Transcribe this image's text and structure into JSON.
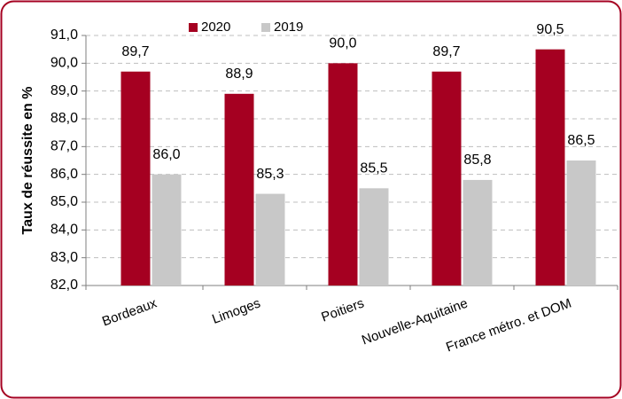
{
  "chart_data": {
    "type": "bar",
    "ylabel": "Taux de réussite en %",
    "categories": [
      "Bordeaux",
      "Limoges",
      "Poitiers",
      "Nouvelle-Aquitaine",
      "France métro. et DOM"
    ],
    "series": [
      {
        "name": "2020",
        "color": "#a50021",
        "values": [
          89.7,
          88.9,
          90.0,
          89.7,
          90.5
        ],
        "value_labels": [
          "89,7",
          "88,9",
          "90,0",
          "89,7",
          "90,5"
        ]
      },
      {
        "name": "2019",
        "color": "#c8c8c8",
        "values": [
          86.0,
          85.3,
          85.5,
          85.8,
          86.5
        ],
        "value_labels": [
          "86,0",
          "85,3",
          "85,5",
          "85,8",
          "86,5"
        ]
      }
    ],
    "ylim": [
      82,
      91
    ],
    "yticks": [
      {
        "value": 82,
        "label": "82,0"
      },
      {
        "value": 83,
        "label": "83,0"
      },
      {
        "value": 84,
        "label": "84,0"
      },
      {
        "value": 85,
        "label": "85,0"
      },
      {
        "value": 86,
        "label": "86,0"
      },
      {
        "value": 87,
        "label": "87,0"
      },
      {
        "value": 88,
        "label": "88,0"
      },
      {
        "value": 89,
        "label": "89,0"
      },
      {
        "value": 90,
        "label": "90,0"
      },
      {
        "value": 91,
        "label": "91,0"
      }
    ],
    "grid": true,
    "legend": "top"
  }
}
